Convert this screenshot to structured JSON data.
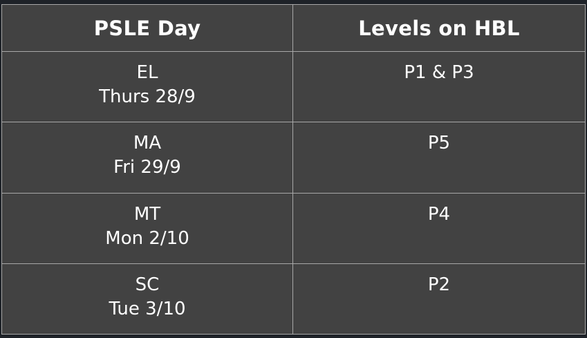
{
  "table": {
    "headers": {
      "day": "PSLE Day",
      "levels": "Levels on HBL"
    },
    "rows": [
      {
        "subject": "EL",
        "date": "Thurs 28/9",
        "levels": "P1 & P3"
      },
      {
        "subject": "MA",
        "date": "Fri 29/9",
        "levels": "P5"
      },
      {
        "subject": "MT",
        "date": "Mon 2/10",
        "levels": "P4"
      },
      {
        "subject": "SC",
        "date": "Tue 3/10",
        "levels": "P2"
      }
    ]
  },
  "colors": {
    "background": "#424242",
    "text": "#ffffff",
    "border": "#a8a8a8"
  }
}
